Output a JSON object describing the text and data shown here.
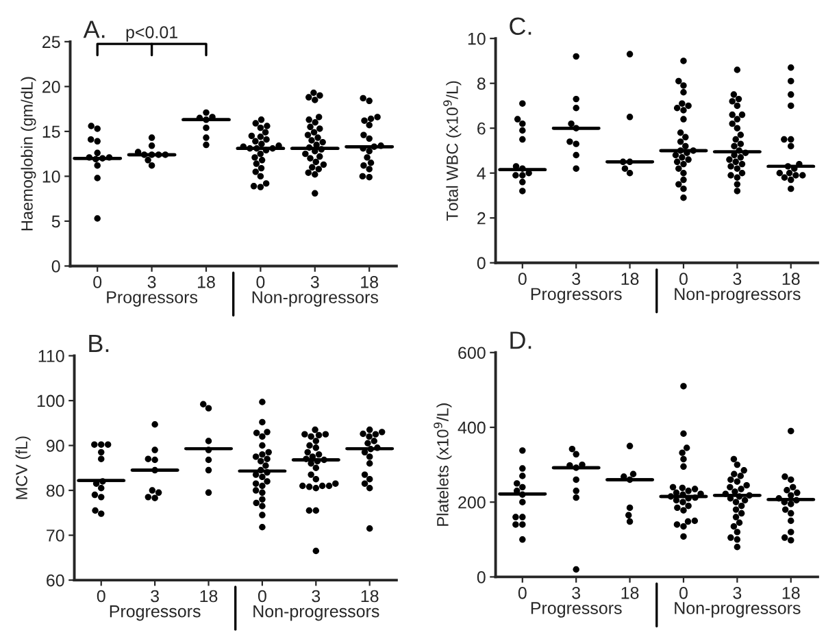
{
  "chart_data": [
    {
      "type": "box",
      "title": "A.",
      "ylabel": "Haemoglobin (gm/dL)",
      "categories": [
        "0",
        "3",
        "18",
        "0",
        "3",
        "18"
      ],
      "ylim": [
        0,
        25
      ],
      "yticks": [
        0,
        5,
        10,
        15,
        20,
        25
      ],
      "marker": "circle",
      "grid": false,
      "annotations": [
        "p<0.01",
        "Progressors",
        "Non-progressors"
      ],
      "boxes": [
        {
          "low": 12.0,
          "q1": 12.0,
          "median": 12.0,
          "q3": 12.0,
          "high": 12.0,
          "outliers": [
            15.6,
            15.3,
            14.1,
            13.9,
            12.6,
            12.1,
            12.1,
            12.0,
            11.9,
            11.2,
            9.8,
            5.3
          ]
        },
        {
          "low": 12.4,
          "q1": 12.4,
          "median": 12.4,
          "q3": 12.4,
          "high": 12.4,
          "outliers": [
            14.3,
            13.4,
            12.7,
            12.4,
            12.4,
            12.4,
            12.4,
            11.8,
            11.2
          ]
        },
        {
          "low": 16.3,
          "q1": 16.3,
          "median": 16.3,
          "q3": 16.3,
          "high": 16.3,
          "outliers": [
            17.1,
            16.6,
            16.5,
            16.3,
            15.4,
            14.3,
            13.5
          ]
        },
        {
          "low": 13.1,
          "q1": 13.1,
          "median": 13.1,
          "q3": 13.1,
          "high": 13.1,
          "outliers": [
            16.3,
            15.9,
            15.6,
            15.4,
            14.9,
            14.5,
            14.4,
            14.1,
            13.9,
            13.6,
            13.4,
            13.3,
            13.1,
            13.1,
            13.1,
            12.9,
            12.5,
            12.1,
            11.8,
            11.4,
            10.9,
            10.5,
            10.0,
            9.2,
            8.9,
            8.8
          ]
        },
        {
          "low": 13.1,
          "q1": 13.1,
          "median": 13.1,
          "q3": 13.1,
          "high": 13.1,
          "outliers": [
            19.3,
            19.0,
            18.8,
            18.5,
            16.6,
            16.3,
            16.0,
            15.5,
            15.3,
            14.9,
            14.6,
            14.3,
            14.0,
            13.8,
            13.5,
            13.2,
            13.0,
            12.8,
            12.5,
            12.2,
            12.0,
            11.6,
            11.3,
            11.0,
            10.8,
            10.4,
            10.2,
            8.1
          ]
        },
        {
          "low": 13.3,
          "q1": 13.3,
          "median": 13.3,
          "q3": 13.3,
          "high": 13.3,
          "outliers": [
            18.7,
            18.4,
            16.6,
            16.4,
            16.2,
            15.7,
            14.6,
            14.2,
            13.4,
            13.3,
            13.1,
            12.8,
            12.1,
            11.5,
            11.2,
            10.8,
            10.0,
            9.9
          ]
        }
      ]
    },
    {
      "type": "box",
      "title": "C.",
      "ylabel": "Total WBC (x10$^{9}$/L)",
      "categories": [
        "0",
        "3",
        "18",
        "0",
        "3",
        "18"
      ],
      "ylim": [
        0,
        10
      ],
      "yticks": [
        0,
        2,
        4,
        6,
        8,
        10
      ],
      "marker": "circle",
      "grid": false,
      "annotations": [
        "Progressors",
        "Non-progressors"
      ],
      "boxes": [
        {
          "low": 4.15,
          "q1": 4.15,
          "median": 4.15,
          "q3": 4.15,
          "high": 4.15,
          "outliers": [
            7.1,
            6.4,
            6.2,
            5.9,
            5.5,
            4.3,
            4.2,
            4.0,
            3.9,
            3.9,
            3.6,
            3.2
          ]
        },
        {
          "low": 6.0,
          "q1": 6.0,
          "median": 6.0,
          "q3": 6.0,
          "high": 6.0,
          "outliers": [
            9.2,
            7.3,
            6.9,
            6.2,
            6.0,
            5.4,
            5.3,
            4.8,
            4.2
          ]
        },
        {
          "low": 4.5,
          "q1": 4.5,
          "median": 4.5,
          "q3": 4.5,
          "high": 4.5,
          "outliers": [
            9.3,
            6.5,
            4.5,
            4.5,
            4.2,
            4.0
          ]
        },
        {
          "low": 5.0,
          "q1": 5.0,
          "median": 5.0,
          "q3": 5.0,
          "high": 5.0,
          "outliers": [
            9.0,
            8.1,
            7.9,
            7.6,
            7.1,
            7.0,
            6.9,
            6.8,
            6.4,
            5.8,
            5.6,
            5.4,
            5.2,
            5.0,
            5.0,
            4.9,
            4.8,
            4.7,
            4.6,
            4.5,
            4.4,
            4.2,
            4.0,
            3.7,
            3.5,
            3.3,
            2.9
          ]
        },
        {
          "low": 4.95,
          "q1": 4.95,
          "median": 4.95,
          "q3": 4.95,
          "high": 4.95,
          "outliers": [
            8.6,
            7.5,
            7.3,
            7.2,
            7.0,
            6.6,
            6.6,
            6.4,
            6.2,
            6.0,
            5.7,
            5.5,
            5.3,
            5.2,
            5.0,
            4.9,
            4.8,
            4.7,
            4.6,
            4.5,
            4.4,
            4.3,
            4.2,
            4.0,
            3.9,
            3.8,
            3.5,
            3.2
          ]
        },
        {
          "low": 4.3,
          "q1": 4.3,
          "median": 4.3,
          "q3": 4.3,
          "high": 4.3,
          "outliers": [
            8.7,
            8.1,
            7.5,
            7.0,
            5.5,
            5.5,
            5.2,
            4.4,
            4.3,
            4.2,
            4.0,
            4.0,
            3.9,
            3.9,
            3.8,
            3.7,
            3.3
          ]
        }
      ]
    },
    {
      "type": "box",
      "title": "B.",
      "ylabel": "MCV (fL)",
      "categories": [
        "0",
        "3",
        "18",
        "0",
        "3",
        "18"
      ],
      "ylim": [
        60,
        110
      ],
      "yticks": [
        60,
        70,
        80,
        90,
        100,
        110
      ],
      "marker": "circle",
      "grid": false,
      "annotations": [
        "Progressors",
        "Non-progressors"
      ],
      "boxes": [
        {
          "low": 82.2,
          "q1": 82.2,
          "median": 82.2,
          "q3": 82.2,
          "high": 82.2,
          "outliers": [
            90.2,
            90.2,
            90.2,
            88.5,
            87.0,
            82.0,
            81.5,
            80.5,
            79.0,
            78.5,
            75.5,
            74.8
          ]
        },
        {
          "low": 84.5,
          "q1": 84.5,
          "median": 84.5,
          "q3": 84.5,
          "high": 84.5,
          "outliers": [
            94.7,
            89.0,
            87.0,
            86.8,
            84.5,
            80.0,
            79.5,
            78.5,
            78.3
          ]
        },
        {
          "low": 89.3,
          "q1": 89.3,
          "median": 89.3,
          "q3": 89.3,
          "high": 89.3,
          "outliers": [
            99.2,
            98.3,
            91.0,
            89.0,
            86.8,
            84.5,
            79.5
          ]
        },
        {
          "low": 84.3,
          "q1": 84.3,
          "median": 84.3,
          "q3": 84.3,
          "high": 84.3,
          "outliers": [
            99.7,
            95.2,
            93.0,
            92.8,
            92.0,
            90.0,
            88.5,
            88.0,
            87.5,
            87.0,
            86.5,
            85.5,
            84.5,
            84.0,
            83.5,
            83.0,
            82.0,
            81.5,
            81.0,
            80.0,
            79.5,
            78.0,
            77.2,
            76.5,
            74.5,
            71.8
          ]
        },
        {
          "low": 86.8,
          "q1": 86.8,
          "median": 86.8,
          "q3": 86.8,
          "high": 86.8,
          "outliers": [
            93.5,
            92.5,
            92.5,
            92.3,
            92.0,
            91.0,
            90.0,
            89.5,
            88.5,
            88.0,
            87.5,
            87.0,
            86.8,
            86.5,
            86.0,
            85.0,
            83.5,
            82.5,
            81.5,
            81.0,
            81.0,
            81.0,
            80.8,
            80.5,
            75.5,
            75.5,
            66.5
          ]
        },
        {
          "low": 89.3,
          "q1": 89.3,
          "median": 89.3,
          "q3": 89.3,
          "high": 89.3,
          "outliers": [
            93.5,
            93.0,
            92.6,
            92.5,
            92.0,
            91.0,
            90.5,
            89.5,
            89.2,
            88.5,
            87.5,
            86.0,
            83.5,
            82.5,
            81.5,
            80.5,
            71.5
          ]
        }
      ]
    },
    {
      "type": "box",
      "title": "D.",
      "ylabel": "Platelets (x10$^{9}$/L)",
      "categories": [
        "0",
        "3",
        "18",
        "0",
        "3",
        "18"
      ],
      "ylim": [
        0,
        600
      ],
      "yticks": [
        0,
        200,
        400,
        600
      ],
      "marker": "circle",
      "grid": false,
      "annotations": [
        "Progressors",
        "Non-progressors"
      ],
      "boxes": [
        {
          "low": 222,
          "q1": 222,
          "median": 222,
          "q3": 222,
          "high": 222,
          "outliers": [
            338,
            290,
            270,
            250,
            240,
            230,
            220,
            200,
            160,
            160,
            140,
            140,
            100
          ]
        },
        {
          "low": 292,
          "q1": 292,
          "median": 292,
          "q3": 292,
          "high": 292,
          "outliers": [
            342,
            328,
            300,
            298,
            292,
            260,
            230,
            212,
            20
          ]
        },
        {
          "low": 260,
          "q1": 260,
          "median": 260,
          "q3": 260,
          "high": 260,
          "outliers": [
            350,
            275,
            268,
            260,
            185,
            165,
            148
          ]
        },
        {
          "low": 215,
          "q1": 215,
          "median": 215,
          "q3": 215,
          "high": 215,
          "outliers": [
            510,
            383,
            345,
            332,
            315,
            295,
            240,
            238,
            235,
            230,
            225,
            222,
            220,
            215,
            212,
            210,
            205,
            200,
            190,
            185,
            178,
            150,
            148,
            140,
            135,
            108
          ]
        },
        {
          "low": 218,
          "q1": 218,
          "median": 218,
          "q3": 218,
          "high": 218,
          "outliers": [
            315,
            300,
            285,
            275,
            270,
            260,
            255,
            245,
            240,
            235,
            228,
            222,
            218,
            215,
            210,
            205,
            200,
            190,
            180,
            170,
            160,
            145,
            135,
            120,
            105,
            100,
            80
          ]
        },
        {
          "low": 207,
          "q1": 207,
          "median": 207,
          "q3": 207,
          "high": 207,
          "outliers": [
            390,
            268,
            260,
            240,
            232,
            225,
            218,
            210,
            205,
            200,
            195,
            180,
            170,
            150,
            120,
            105,
            98
          ]
        }
      ]
    }
  ]
}
